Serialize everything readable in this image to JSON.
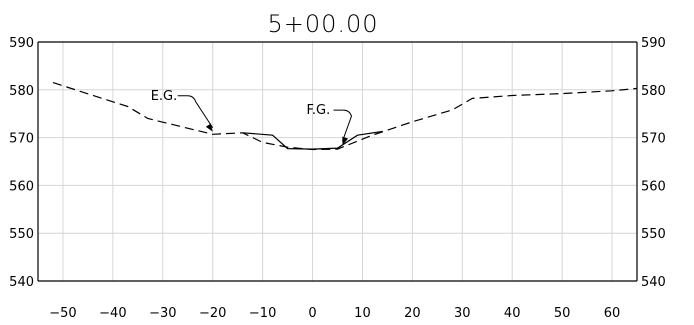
{
  "chart_data": {
    "type": "line",
    "title": "5+00.00",
    "xlabel": "",
    "ylabel": "",
    "xlim": [
      -55,
      65
    ],
    "ylim": [
      540,
      590
    ],
    "x_ticks": [
      -50,
      -40,
      -30,
      -20,
      -10,
      0,
      10,
      20,
      30,
      40,
      50,
      60
    ],
    "y_ticks": [
      540,
      550,
      560,
      570,
      580,
      590
    ],
    "grid": true,
    "y_axis_labels_both_sides": true,
    "series": [
      {
        "style": "dashed",
        "x": [
          -52,
          -40,
          -37,
          -33,
          -20,
          -14,
          -10,
          -5,
          0,
          5,
          12,
          20,
          28,
          32,
          40,
          50,
          60,
          65
        ],
        "y": [
          581.5,
          577.5,
          576.5,
          574,
          570.7,
          571,
          569,
          568,
          567.5,
          567.6,
          570.5,
          573.3,
          575.8,
          578.2,
          578.8,
          579.2,
          579.8,
          580.3
        ]
      },
      {
        "style": "solid",
        "x": [
          -14,
          -8,
          -5,
          0,
          5,
          9,
          14
        ],
        "y": [
          571,
          570.5,
          567.7,
          567.6,
          567.8,
          570.5,
          571.3
        ]
      }
    ],
    "annotations": [
      {
        "text": "E.G.",
        "target": [
          -20,
          570.8
        ]
      },
      {
        "text": "F.G.",
        "target": [
          6,
          568
        ]
      }
    ]
  }
}
